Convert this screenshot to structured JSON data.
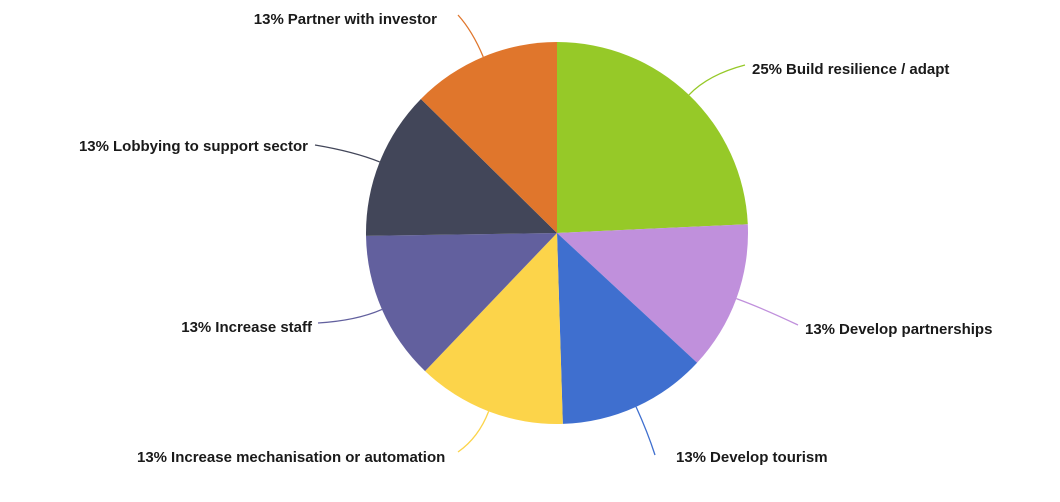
{
  "chart_data": {
    "type": "pie",
    "categories": [
      "Build resilience / adapt",
      "Develop partnerships",
      "Develop tourism",
      "Increase mechanisation or automation",
      "Increase staff",
      "Lobbying to support sector",
      "Partner with investor"
    ],
    "values": [
      25,
      13,
      13,
      13,
      13,
      13,
      13
    ],
    "value_labels": [
      "25%",
      "13%",
      "13%",
      "13%",
      "13%",
      "13%",
      "13%"
    ],
    "colors": [
      "#96c928",
      "#c090dc",
      "#3f6fcf",
      "#fcd44a",
      "#62609e",
      "#424659",
      "#e0762c"
    ]
  }
}
